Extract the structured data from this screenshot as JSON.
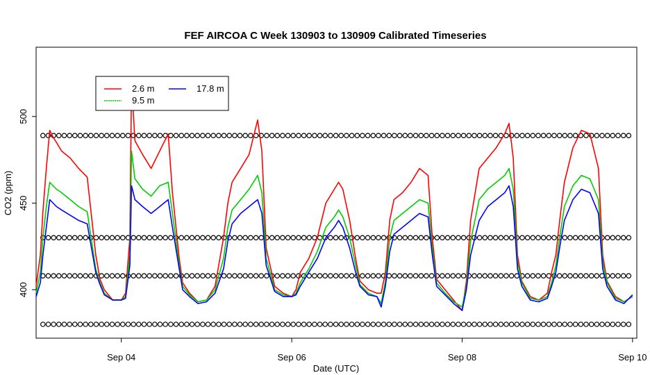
{
  "chart_data": {
    "type": "line",
    "title": "FEF AIRCOA C  Week 130903 to 130909  Calibrated Timeseries",
    "xlabel": "Date (UTC)",
    "ylabel": "CO2 (ppm)",
    "xlim": [
      3.0,
      10.05
    ],
    "ylim": [
      372,
      540
    ],
    "x_ticks": [
      {
        "value": 4,
        "label": "Sep 04"
      },
      {
        "value": 6,
        "label": "Sep 06"
      },
      {
        "value": 8,
        "label": "Sep 08"
      },
      {
        "value": 10,
        "label": "Sep 10"
      }
    ],
    "y_ticks": [
      {
        "value": 400,
        "label": "400"
      },
      {
        "value": 450,
        "label": "450"
      },
      {
        "value": 500,
        "label": "500"
      }
    ],
    "legend": {
      "position": "top-left",
      "entries": [
        {
          "label": "2.6 m",
          "color": "#ff0000"
        },
        {
          "label": "9.5 m",
          "color": "#00cc00"
        },
        {
          "label": "17.8 m",
          "color": "#0000ff"
        }
      ]
    },
    "series": [
      {
        "name": "2.6 m",
        "color": "#ff0000",
        "x": [
          3.0,
          3.05,
          3.08,
          3.12,
          3.16,
          3.2,
          3.24,
          3.3,
          3.4,
          3.5,
          3.6,
          3.7,
          3.75,
          3.8,
          3.9,
          4.0,
          4.05,
          4.1,
          4.12,
          4.16,
          4.25,
          4.35,
          4.45,
          4.55,
          4.6,
          4.68,
          4.72,
          4.8,
          4.9,
          5.0,
          5.1,
          5.2,
          5.25,
          5.3,
          5.4,
          5.5,
          5.6,
          5.65,
          5.7,
          5.8,
          5.9,
          6.0,
          6.05,
          6.1,
          6.2,
          6.3,
          6.4,
          6.5,
          6.55,
          6.6,
          6.68,
          6.75,
          6.8,
          6.9,
          7.0,
          7.05,
          7.1,
          7.15,
          7.2,
          7.3,
          7.4,
          7.5,
          7.6,
          7.65,
          7.7,
          7.8,
          7.9,
          8.0,
          8.05,
          8.1,
          8.2,
          8.3,
          8.4,
          8.5,
          8.55,
          8.6,
          8.65,
          8.7,
          8.8,
          8.9,
          9.0,
          9.05,
          9.1,
          9.15,
          9.2,
          9.3,
          9.4,
          9.5,
          9.6,
          9.65,
          9.7,
          9.8,
          9.9,
          10.0
        ],
        "y": [
          402,
          420,
          445,
          470,
          492,
          488,
          485,
          480,
          476,
          470,
          465,
          420,
          406,
          400,
          394,
          394,
          398,
          430,
          520,
          486,
          478,
          470,
          480,
          490,
          456,
          418,
          404,
          398,
          393,
          394,
          402,
          430,
          450,
          462,
          470,
          478,
          498,
          480,
          424,
          402,
          398,
          396,
          400,
          410,
          418,
          430,
          450,
          458,
          462,
          458,
          440,
          418,
          405,
          400,
          398,
          398,
          410,
          440,
          452,
          456,
          462,
          470,
          466,
          430,
          406,
          400,
          394,
          388,
          405,
          440,
          470,
          476,
          482,
          490,
          496,
          476,
          420,
          405,
          396,
          394,
          398,
          410,
          420,
          442,
          462,
          482,
          492,
          490,
          470,
          420,
          405,
          396,
          393,
          396
        ]
      },
      {
        "name": "9.5 m",
        "color": "#00cc00",
        "x": [
          3.0,
          3.05,
          3.08,
          3.12,
          3.16,
          3.2,
          3.24,
          3.3,
          3.4,
          3.5,
          3.6,
          3.7,
          3.75,
          3.8,
          3.9,
          4.0,
          4.05,
          4.1,
          4.12,
          4.16,
          4.25,
          4.35,
          4.45,
          4.55,
          4.6,
          4.68,
          4.72,
          4.8,
          4.9,
          5.0,
          5.1,
          5.2,
          5.25,
          5.3,
          5.4,
          5.5,
          5.6,
          5.65,
          5.7,
          5.8,
          5.9,
          6.0,
          6.05,
          6.1,
          6.2,
          6.3,
          6.4,
          6.5,
          6.55,
          6.6,
          6.68,
          6.75,
          6.8,
          6.9,
          7.0,
          7.05,
          7.1,
          7.15,
          7.2,
          7.3,
          7.4,
          7.5,
          7.6,
          7.65,
          7.7,
          7.8,
          7.9,
          8.0,
          8.05,
          8.1,
          8.2,
          8.3,
          8.4,
          8.5,
          8.55,
          8.6,
          8.65,
          8.7,
          8.8,
          8.9,
          9.0,
          9.05,
          9.1,
          9.15,
          9.2,
          9.3,
          9.4,
          9.5,
          9.6,
          9.65,
          9.7,
          9.8,
          9.9,
          10.0
        ],
        "y": [
          398,
          410,
          430,
          448,
          462,
          460,
          458,
          456,
          452,
          448,
          445,
          412,
          404,
          398,
          394,
          394,
          396,
          420,
          480,
          464,
          458,
          454,
          460,
          462,
          444,
          414,
          402,
          397,
          393,
          394,
          400,
          418,
          436,
          446,
          452,
          458,
          466,
          456,
          418,
          400,
          397,
          396,
          398,
          404,
          412,
          422,
          436,
          442,
          446,
          442,
          430,
          414,
          403,
          398,
          396,
          392,
          405,
          430,
          440,
          444,
          448,
          452,
          450,
          424,
          404,
          398,
          393,
          390,
          402,
          428,
          452,
          458,
          462,
          466,
          470,
          458,
          416,
          404,
          395,
          394,
          396,
          404,
          414,
          432,
          448,
          460,
          466,
          464,
          452,
          416,
          404,
          395,
          393,
          396
        ]
      },
      {
        "name": "17.8 m",
        "color": "#0000ff",
        "x": [
          3.0,
          3.05,
          3.08,
          3.12,
          3.16,
          3.2,
          3.24,
          3.3,
          3.4,
          3.5,
          3.6,
          3.7,
          3.75,
          3.8,
          3.9,
          4.0,
          4.05,
          4.1,
          4.12,
          4.16,
          4.25,
          4.35,
          4.45,
          4.55,
          4.6,
          4.68,
          4.72,
          4.8,
          4.9,
          5.0,
          5.1,
          5.2,
          5.25,
          5.3,
          5.4,
          5.5,
          5.6,
          5.65,
          5.7,
          5.8,
          5.9,
          6.0,
          6.05,
          6.1,
          6.2,
          6.3,
          6.4,
          6.5,
          6.55,
          6.6,
          6.68,
          6.75,
          6.8,
          6.9,
          7.0,
          7.05,
          7.1,
          7.15,
          7.2,
          7.3,
          7.4,
          7.5,
          7.6,
          7.65,
          7.7,
          7.8,
          7.9,
          8.0,
          8.05,
          8.1,
          8.2,
          8.3,
          8.4,
          8.5,
          8.55,
          8.6,
          8.65,
          8.7,
          8.8,
          8.9,
          9.0,
          9.05,
          9.1,
          9.15,
          9.2,
          9.3,
          9.4,
          9.5,
          9.6,
          9.65,
          9.7,
          9.8,
          9.9,
          10.0
        ],
        "y": [
          396,
          404,
          420,
          436,
          452,
          450,
          448,
          446,
          443,
          440,
          438,
          410,
          403,
          397,
          394,
          394,
          395,
          414,
          460,
          452,
          448,
          444,
          448,
          452,
          436,
          412,
          400,
          396,
          392,
          393,
          398,
          412,
          428,
          438,
          444,
          448,
          452,
          444,
          414,
          399,
          396,
          396,
          397,
          402,
          410,
          418,
          430,
          436,
          440,
          436,
          424,
          410,
          402,
          397,
          396,
          390,
          402,
          422,
          432,
          436,
          440,
          444,
          442,
          420,
          402,
          397,
          392,
          388,
          400,
          420,
          440,
          448,
          452,
          456,
          460,
          448,
          412,
          402,
          394,
          393,
          395,
          402,
          410,
          426,
          440,
          452,
          458,
          456,
          444,
          412,
          402,
          394,
          392,
          397
        ]
      },
      {
        "name": "calibration markers",
        "color": "#000000",
        "marker": "circle",
        "levels": [
          489,
          430,
          408,
          380
        ]
      }
    ]
  }
}
